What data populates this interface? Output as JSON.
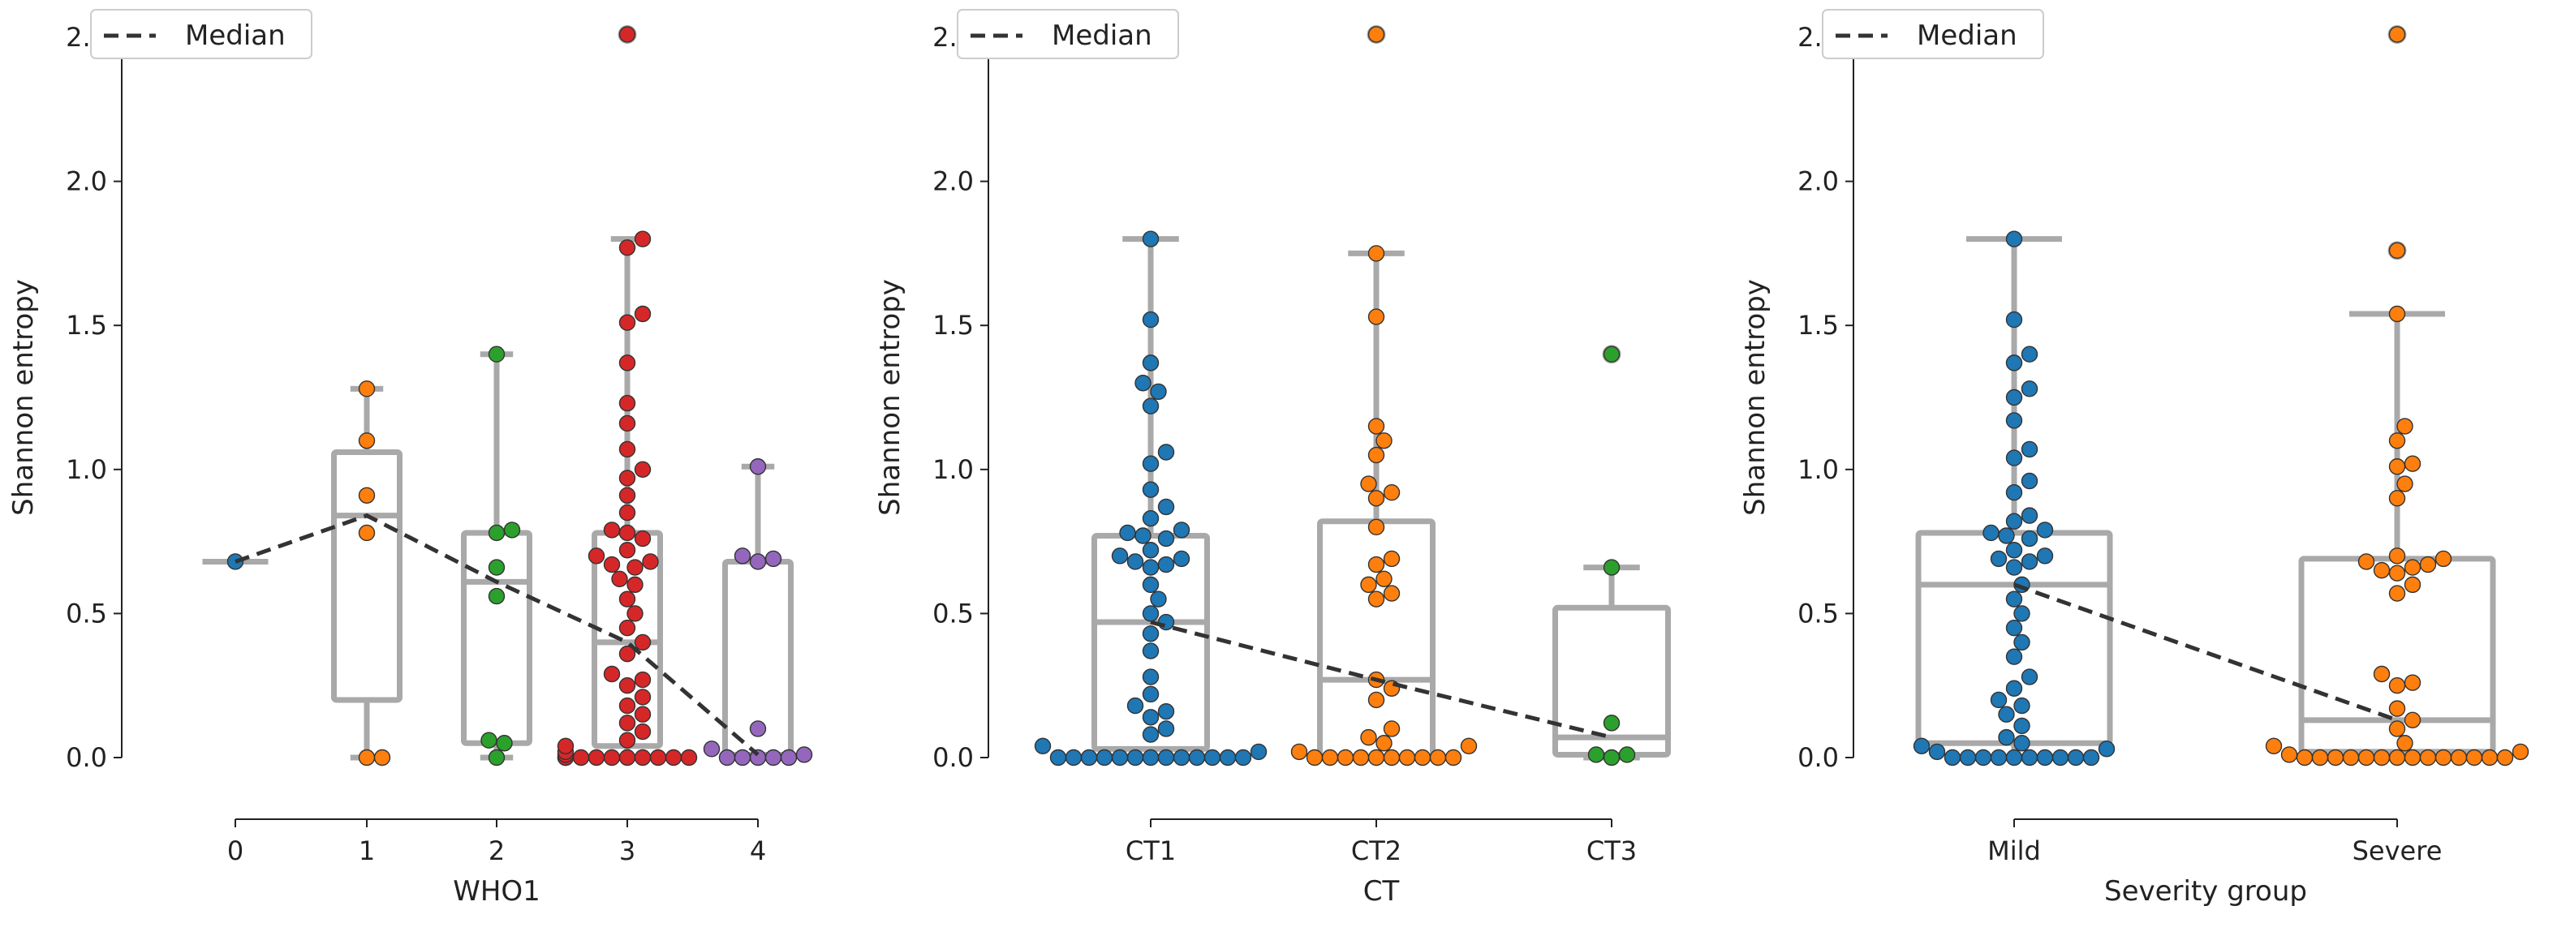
{
  "chart_data": [
    {
      "type": "box+swarm",
      "xlabel": "WHO1",
      "ylabel": "Shannon entropy",
      "ylim": [
        0,
        2.5
      ],
      "yticks": [
        "0.0",
        "0.5",
        "1.0",
        "1.5",
        "2.0",
        "2.5"
      ],
      "categories": [
        "0",
        "1",
        "2",
        "3",
        "4"
      ],
      "legend": {
        "label": "Median",
        "placement": "top-left"
      },
      "median_line": [
        0.68,
        0.84,
        0.61,
        0.4,
        0.01
      ],
      "groups": [
        {
          "category": "0",
          "color": "#1f77b4",
          "box": {
            "q1": 0.68,
            "median": 0.68,
            "q3": 0.68,
            "whisker_low": 0.68,
            "whisker_high": 0.68
          },
          "points": [
            0.68
          ]
        },
        {
          "category": "1",
          "color": "#ff7f0e",
          "box": {
            "q1": 0.2,
            "median": 0.84,
            "q3": 1.06,
            "whisker_low": 0.0,
            "whisker_high": 1.28
          },
          "points": [
            1.28,
            1.1,
            0.91,
            0.78,
            0.0,
            0.0
          ]
        },
        {
          "category": "2",
          "color": "#2ca02c",
          "box": {
            "q1": 0.05,
            "median": 0.61,
            "q3": 0.78,
            "whisker_low": 0.0,
            "whisker_high": 1.4
          },
          "points": [
            1.4,
            0.79,
            0.78,
            0.66,
            0.56,
            0.06,
            0.05,
            0.0
          ]
        },
        {
          "category": "3",
          "color": "#d62728",
          "box": {
            "q1": 0.04,
            "median": 0.4,
            "q3": 0.78,
            "whisker_low": 0.0,
            "whisker_high": 1.8
          },
          "outliers": [
            2.51
          ],
          "points": [
            1.8,
            1.77,
            1.54,
            1.51,
            1.37,
            1.23,
            1.16,
            1.07,
            1.0,
            0.97,
            0.91,
            0.85,
            0.79,
            0.78,
            0.76,
            0.72,
            0.7,
            0.68,
            0.67,
            0.66,
            0.62,
            0.6,
            0.55,
            0.5,
            0.45,
            0.4,
            0.36,
            0.29,
            0.27,
            0.25,
            0.21,
            0.18,
            0.15,
            0.12,
            0.09,
            0.06,
            0.04,
            0.02,
            0.01,
            0.0,
            0.0,
            0.0,
            0.0,
            0.0,
            0.0,
            0.0,
            0.0,
            0.0,
            0.0,
            0.0
          ]
        },
        {
          "category": "4",
          "color": "#9467bd",
          "box": {
            "q1": 0.0,
            "median": 0.01,
            "q3": 0.68,
            "whisker_low": 0.0,
            "whisker_high": 1.01
          },
          "points": [
            1.01,
            0.7,
            0.69,
            0.68,
            0.1,
            0.03,
            0.01,
            0.0,
            0.0,
            0.0,
            0.0,
            0.0
          ]
        }
      ]
    },
    {
      "type": "box+swarm",
      "xlabel": "CT",
      "ylabel": "Shannon entropy",
      "ylim": [
        0,
        2.5
      ],
      "yticks": [
        "0.0",
        "0.5",
        "1.0",
        "1.5",
        "2.0",
        "2.5"
      ],
      "categories": [
        "CT1",
        "CT2",
        "CT3"
      ],
      "legend": {
        "label": "Median",
        "placement": "top-left"
      },
      "median_line": [
        0.47,
        0.27,
        0.07
      ],
      "groups": [
        {
          "category": "CT1",
          "color": "#1f77b4",
          "box": {
            "q1": 0.03,
            "median": 0.47,
            "q3": 0.77,
            "whisker_low": 0.0,
            "whisker_high": 1.8
          },
          "points": [
            1.8,
            1.52,
            1.37,
            1.3,
            1.27,
            1.22,
            1.06,
            1.02,
            0.93,
            0.87,
            0.83,
            0.79,
            0.78,
            0.77,
            0.76,
            0.72,
            0.7,
            0.69,
            0.68,
            0.67,
            0.66,
            0.6,
            0.55,
            0.5,
            0.47,
            0.43,
            0.37,
            0.28,
            0.22,
            0.18,
            0.16,
            0.14,
            0.1,
            0.08,
            0.04,
            0.02,
            0.0,
            0.0,
            0.0,
            0.0,
            0.0,
            0.0,
            0.0,
            0.0,
            0.0,
            0.0,
            0.0,
            0.0,
            0.0
          ]
        },
        {
          "category": "CT2",
          "color": "#ff7f0e",
          "box": {
            "q1": 0.0,
            "median": 0.27,
            "q3": 0.82,
            "whisker_low": 0.0,
            "whisker_high": 1.75
          },
          "outliers": [
            2.51
          ],
          "points": [
            1.75,
            1.53,
            1.15,
            1.1,
            1.05,
            0.95,
            0.92,
            0.9,
            0.8,
            0.69,
            0.67,
            0.62,
            0.6,
            0.57,
            0.55,
            0.27,
            0.24,
            0.2,
            0.1,
            0.07,
            0.05,
            0.04,
            0.02,
            0.0,
            0.0,
            0.0,
            0.0,
            0.0,
            0.0,
            0.0,
            0.0,
            0.0,
            0.0
          ]
        },
        {
          "category": "CT3",
          "color": "#2ca02c",
          "box": {
            "q1": 0.01,
            "median": 0.07,
            "q3": 0.52,
            "whisker_low": 0.0,
            "whisker_high": 0.66
          },
          "outliers": [
            1.4
          ],
          "points": [
            0.66,
            0.12,
            0.01,
            0.01,
            0.0
          ]
        }
      ]
    },
    {
      "type": "box+swarm",
      "xlabel": "Severity group",
      "ylabel": "Shannon entropy",
      "ylim": [
        0,
        2.5
      ],
      "yticks": [
        "0.0",
        "0.5",
        "1.0",
        "1.5",
        "2.0",
        "2.5"
      ],
      "categories": [
        "Mild",
        "Severe"
      ],
      "legend": {
        "label": "Median",
        "placement": "top-left"
      },
      "median_line": [
        0.6,
        0.13
      ],
      "groups": [
        {
          "category": "Mild",
          "color": "#1f77b4",
          "box": {
            "q1": 0.05,
            "median": 0.6,
            "q3": 0.78,
            "whisker_low": 0.0,
            "whisker_high": 1.8
          },
          "points": [
            1.8,
            1.52,
            1.4,
            1.37,
            1.28,
            1.25,
            1.17,
            1.07,
            1.04,
            0.96,
            0.92,
            0.84,
            0.82,
            0.79,
            0.78,
            0.77,
            0.76,
            0.72,
            0.7,
            0.69,
            0.68,
            0.66,
            0.6,
            0.55,
            0.5,
            0.45,
            0.4,
            0.35,
            0.28,
            0.24,
            0.2,
            0.18,
            0.15,
            0.11,
            0.07,
            0.05,
            0.04,
            0.03,
            0.02,
            0.0,
            0.0,
            0.0,
            0.0,
            0.0,
            0.0,
            0.0,
            0.0,
            0.0,
            0.0
          ]
        },
        {
          "category": "Severe",
          "color": "#ff7f0e",
          "box": {
            "q1": 0.02,
            "median": 0.13,
            "q3": 0.69,
            "whisker_low": 0.0,
            "whisker_high": 1.54
          },
          "outliers": [
            2.51,
            1.76
          ],
          "points": [
            1.54,
            1.15,
            1.1,
            1.02,
            1.01,
            0.95,
            0.9,
            0.7,
            0.69,
            0.68,
            0.67,
            0.66,
            0.65,
            0.64,
            0.6,
            0.57,
            0.29,
            0.26,
            0.25,
            0.17,
            0.13,
            0.1,
            0.05,
            0.04,
            0.02,
            0.01,
            0.0,
            0.0,
            0.0,
            0.0,
            0.0,
            0.0,
            0.0,
            0.0,
            0.0,
            0.0,
            0.0,
            0.0,
            0.0,
            0.0
          ]
        }
      ]
    }
  ]
}
